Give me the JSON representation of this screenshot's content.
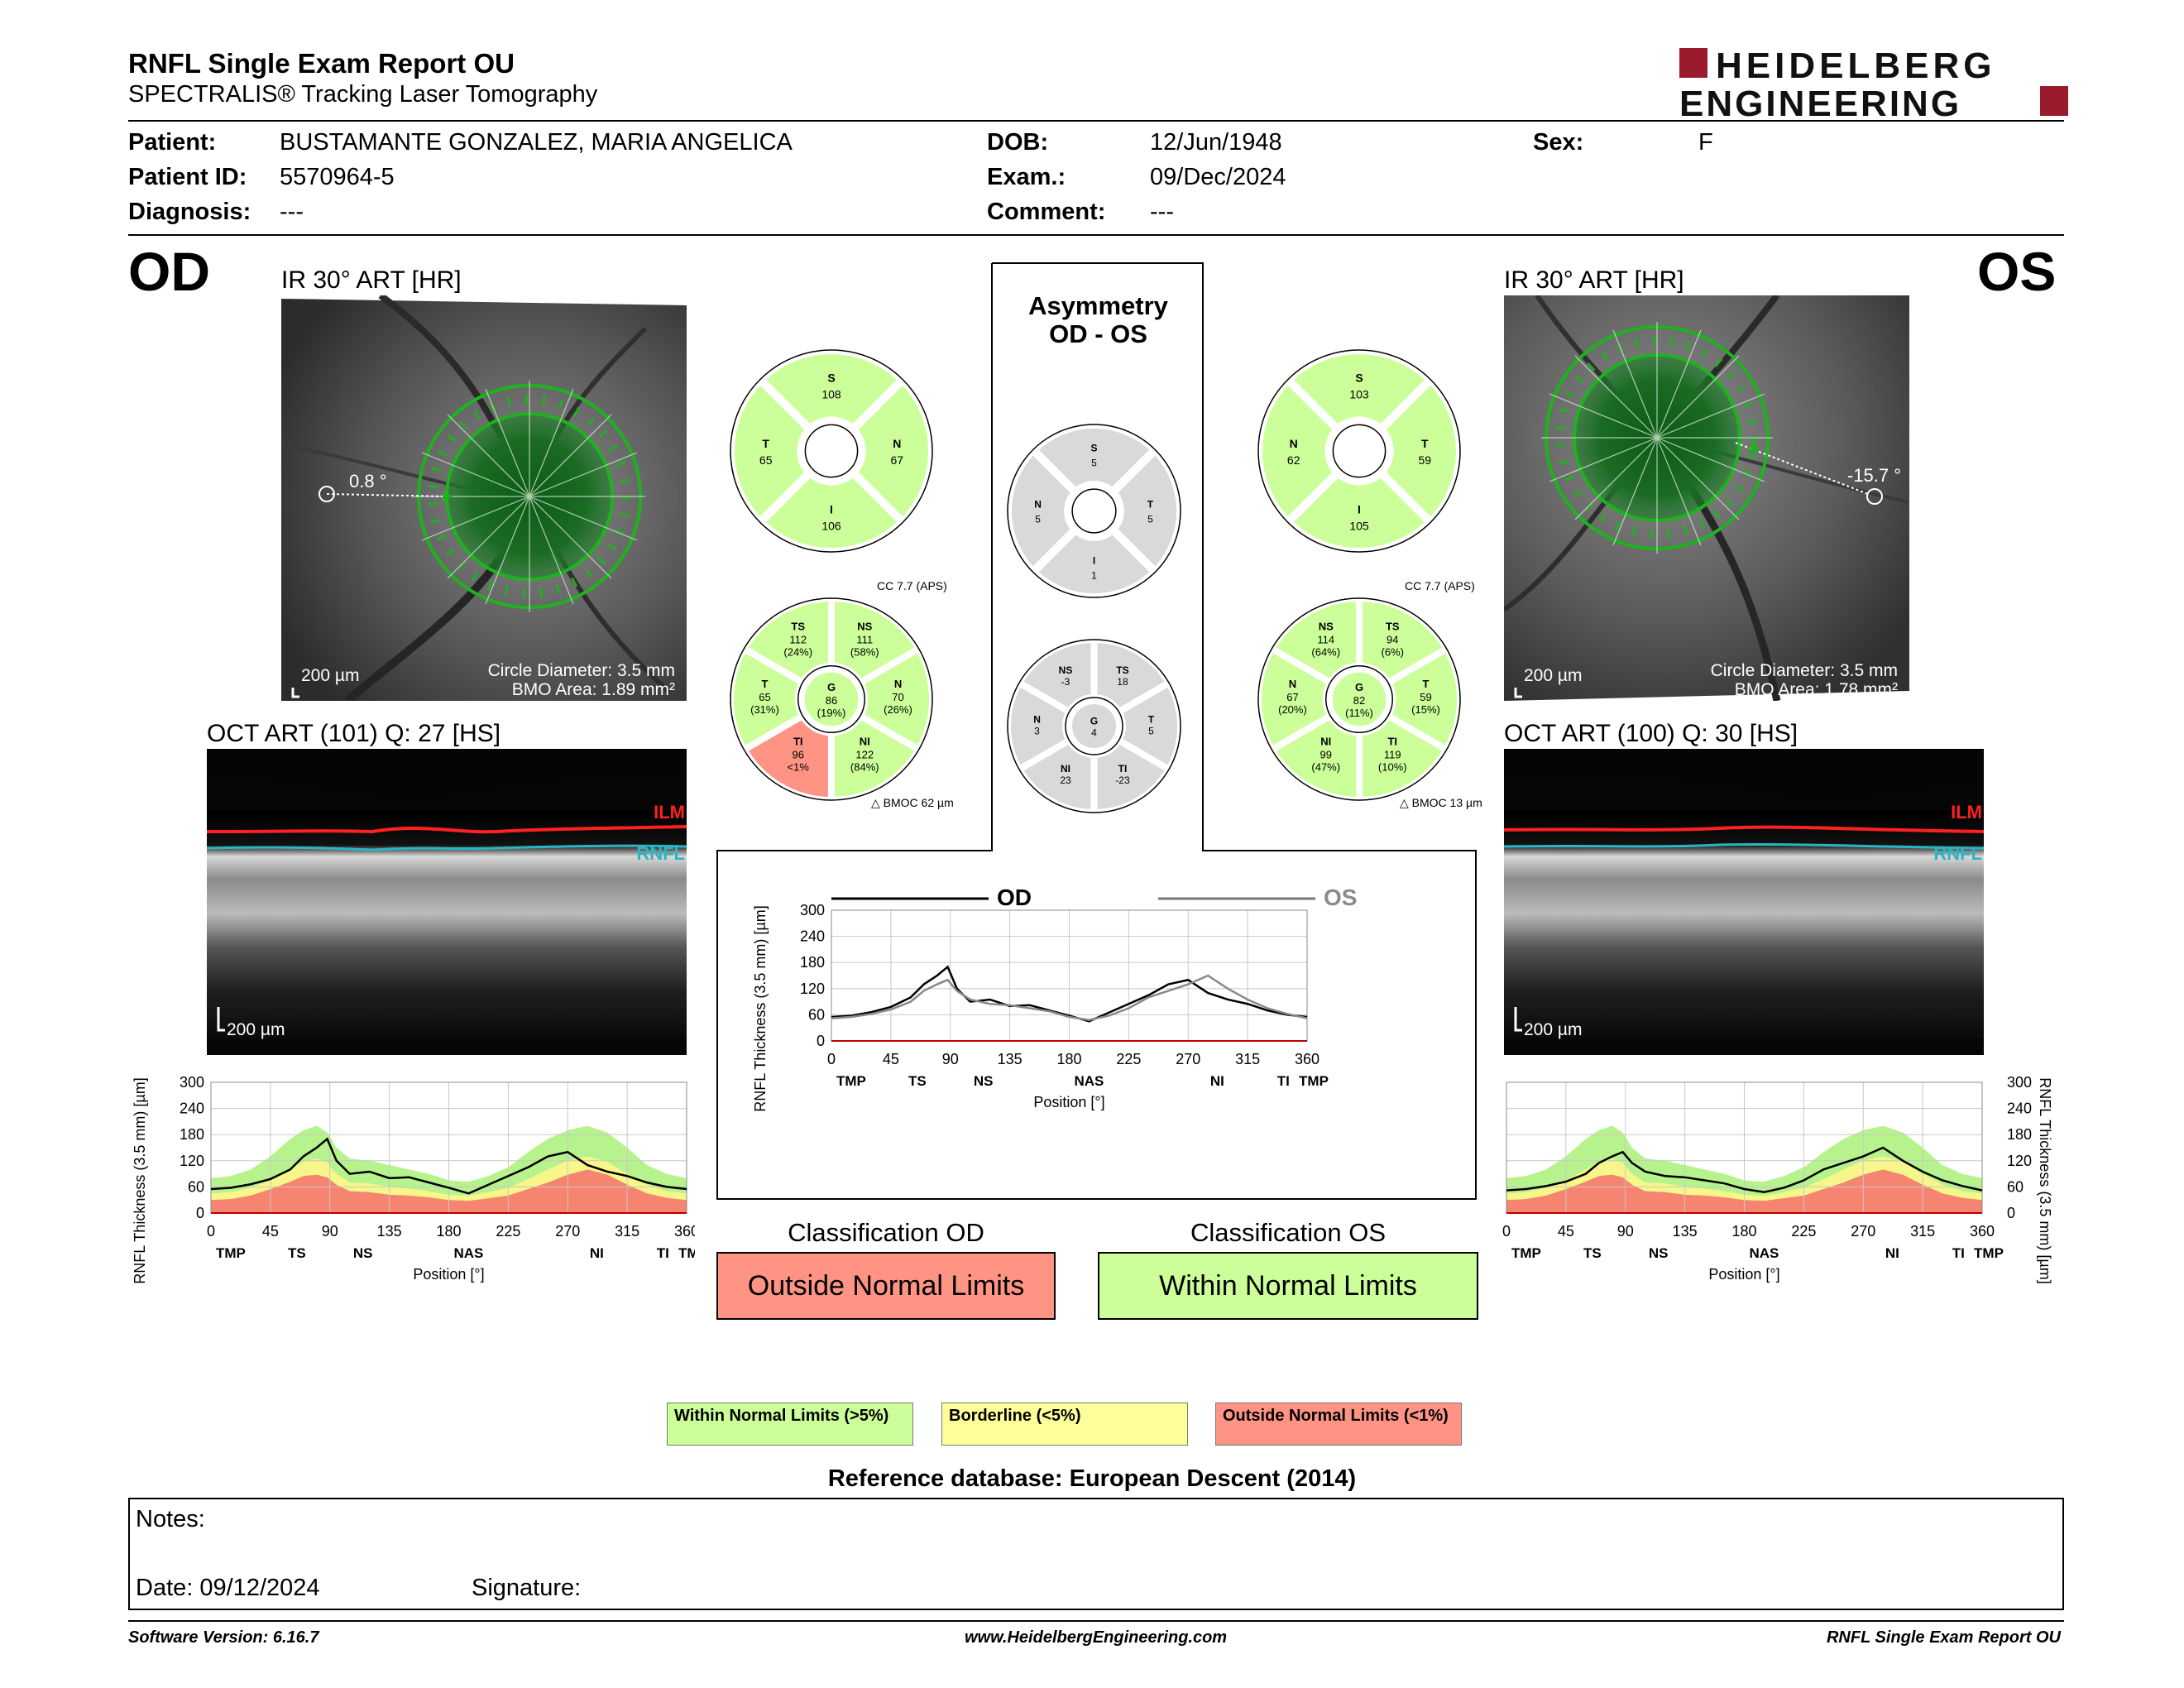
{
  "header": {
    "title": "RNFL Single Exam Report OU",
    "subtitle": "SPECTRALIS® Tracking Laser Tomography",
    "logo_line1": "HEIDELBERG",
    "logo_line2": "ENGINEERING"
  },
  "patient": {
    "patient_label": "Patient:",
    "patient_value": "BUSTAMANTE GONZALEZ, MARIA ANGELICA",
    "id_label": "Patient ID:",
    "id_value": "5570964-5",
    "diag_label": "Diagnosis:",
    "diag_value": "---",
    "dob_label": "DOB:",
    "dob_value": "12/Jun/1948",
    "exam_label": "Exam.:",
    "exam_value": "09/Dec/2024",
    "comment_label": "Comment:",
    "comment_value": "---",
    "sex_label": "Sex:",
    "sex_value": "F"
  },
  "od": {
    "eye": "OD",
    "ir_title": "IR 30° ART [HR]",
    "angle": "0.8 °",
    "scale": "200 µm",
    "circle_diameter": "Circle Diameter: 3.5 mm",
    "bmo_area": "BMO Area: 1.89 mm²",
    "oct_title": "OCT ART (101) Q: 27 [HS]",
    "oct_scale": "200 µm",
    "ilm": "ILM",
    "rnfl": "RNFL",
    "quad": {
      "S": "108",
      "N": "67",
      "I": "106",
      "T": "65"
    },
    "cc": "CC 7.7 (APS)",
    "bmoc": "BMOC 62 µm",
    "sectors": {
      "TS": [
        "112",
        "(24%)"
      ],
      "NS": [
        "111",
        "(58%)"
      ],
      "N": [
        "70",
        "(26%)"
      ],
      "NI": [
        "122",
        "(84%)"
      ],
      "TI": [
        "96",
        "<1%"
      ],
      "T": [
        "65",
        "(31%)"
      ],
      "G": [
        "86",
        "(19%)"
      ]
    },
    "classification_label": "Classification OD",
    "classification_value": "Outside Normal Limits"
  },
  "os": {
    "eye": "OS",
    "ir_title": "IR 30° ART [HR]",
    "angle": "-15.7 °",
    "scale": "200 µm",
    "circle_diameter": "Circle Diameter: 3.5 mm",
    "bmo_area": "BMO Area: 1.78 mm²",
    "oct_title": "OCT ART (100) Q: 30 [HS]",
    "oct_scale": "200 µm",
    "ilm": "ILM",
    "rnfl": "RNFL",
    "quad": {
      "S": "103",
      "N": "62",
      "I": "105",
      "T": "59"
    },
    "cc": "CC 7.7 (APS)",
    "bmoc": "BMOC 13 µm",
    "sectors": {
      "NS": [
        "114",
        "(64%)"
      ],
      "TS": [
        "94",
        "(6%)"
      ],
      "T": [
        "59",
        "(15%)"
      ],
      "TI": [
        "119",
        "(10%)"
      ],
      "NI": [
        "99",
        "(47%)"
      ],
      "N": [
        "67",
        "(20%)"
      ],
      "G": [
        "82",
        "(11%)"
      ]
    },
    "classification_label": "Classification OS",
    "classification_value": "Within Normal Limits"
  },
  "asym": {
    "title1": "Asymmetry",
    "title2": "OD - OS",
    "quad": {
      "S": "5",
      "N": "5",
      "I": "1",
      "T": "5"
    },
    "sectors": {
      "NS": "-3",
      "TS": "18",
      "T": "5",
      "TI": "-23",
      "NI": "23",
      "N": "3",
      "G": "4"
    }
  },
  "chart_data": [
    {
      "type": "line",
      "title": "OD",
      "xlabel": "Position [°]",
      "ylabel": "RNFL Thickness (3.5 mm) [µm]",
      "xlim": [
        0,
        360
      ],
      "ylim": [
        0,
        300
      ],
      "xticks": [
        "0",
        "45",
        "90",
        "135",
        "180",
        "225",
        "270",
        "315",
        "360"
      ],
      "yticks": [
        "0",
        "60",
        "120",
        "180",
        "240",
        "300"
      ],
      "region_labels": [
        "TMP",
        "TS",
        "NS",
        "NAS",
        "NI",
        "TI",
        "TMP"
      ],
      "x": [
        0,
        15,
        30,
        45,
        60,
        70,
        80,
        88,
        95,
        105,
        120,
        135,
        150,
        165,
        180,
        195,
        210,
        225,
        240,
        255,
        270,
        285,
        300,
        315,
        330,
        345,
        360
      ],
      "series": [
        {
          "name": "OD",
          "values": [
            55,
            58,
            66,
            78,
            100,
            130,
            150,
            170,
            120,
            90,
            95,
            80,
            82,
            70,
            58,
            45,
            65,
            85,
            105,
            130,
            140,
            110,
            95,
            85,
            70,
            60,
            55
          ]
        }
      ],
      "bands": {
        "outside_upper": [
          30,
          32,
          40,
          55,
          72,
          85,
          88,
          82,
          65,
          50,
          48,
          42,
          40,
          36,
          30,
          28,
          34,
          40,
          55,
          70,
          88,
          100,
          88,
          65,
          45,
          35,
          30
        ],
        "borderline_upper": [
          45,
          48,
          58,
          75,
          100,
          118,
          125,
          115,
          90,
          70,
          68,
          60,
          56,
          50,
          42,
          40,
          48,
          58,
          78,
          100,
          120,
          130,
          118,
          90,
          65,
          50,
          45
        ],
        "normal_upper": [
          80,
          85,
          100,
          130,
          170,
          190,
          200,
          185,
          150,
          125,
          120,
          110,
          100,
          90,
          75,
          72,
          85,
          105,
          140,
          170,
          190,
          200,
          185,
          150,
          110,
          90,
          80
        ]
      }
    },
    {
      "type": "line",
      "title": "Asymmetry OD - OS",
      "legend": [
        "OD",
        "OS"
      ],
      "xlabel": "Position [°]",
      "ylabel": "RNFL Thickness (3.5 mm) [µm]",
      "xlim": [
        0,
        360
      ],
      "ylim": [
        0,
        300
      ],
      "xticks": [
        "0",
        "45",
        "90",
        "135",
        "180",
        "225",
        "270",
        "315",
        "360"
      ],
      "yticks": [
        "0",
        "60",
        "120",
        "180",
        "240",
        "300"
      ],
      "region_labels": [
        "TMP",
        "TS",
        "NS",
        "NAS",
        "NI",
        "TI",
        "TMP"
      ],
      "x": [
        0,
        15,
        30,
        45,
        60,
        70,
        80,
        88,
        95,
        105,
        120,
        135,
        150,
        165,
        180,
        195,
        210,
        225,
        240,
        255,
        270,
        285,
        300,
        315,
        330,
        345,
        360
      ],
      "series": [
        {
          "name": "OD",
          "values": [
            55,
            58,
            66,
            78,
            100,
            130,
            150,
            170,
            120,
            90,
            95,
            80,
            82,
            70,
            58,
            45,
            65,
            85,
            105,
            130,
            140,
            110,
            95,
            85,
            70,
            60,
            55
          ]
        },
        {
          "name": "OS",
          "values": [
            52,
            55,
            62,
            72,
            90,
            115,
            130,
            140,
            115,
            95,
            85,
            82,
            75,
            68,
            55,
            48,
            58,
            75,
            100,
            115,
            130,
            150,
            120,
            95,
            75,
            62,
            52
          ]
        }
      ]
    },
    {
      "type": "line",
      "title": "OS",
      "xlabel": "Position [°]",
      "ylabel": "RNFL Thickness (3.5 mm) [µm]",
      "xlim": [
        0,
        360
      ],
      "ylim": [
        0,
        300
      ],
      "xticks": [
        "0",
        "45",
        "90",
        "135",
        "180",
        "225",
        "270",
        "315",
        "360"
      ],
      "yticks": [
        "0",
        "60",
        "120",
        "180",
        "240",
        "300"
      ],
      "region_labels": [
        "TMP",
        "TS",
        "NS",
        "NAS",
        "NI",
        "TI",
        "TMP"
      ],
      "x": [
        0,
        15,
        30,
        45,
        60,
        70,
        80,
        88,
        95,
        105,
        120,
        135,
        150,
        165,
        180,
        195,
        210,
        225,
        240,
        255,
        270,
        285,
        300,
        315,
        330,
        345,
        360
      ],
      "series": [
        {
          "name": "OS",
          "values": [
            52,
            55,
            62,
            72,
            90,
            115,
            130,
            140,
            115,
            95,
            85,
            82,
            75,
            68,
            55,
            48,
            58,
            75,
            100,
            115,
            130,
            150,
            120,
            95,
            75,
            62,
            52
          ]
        }
      ],
      "bands": {
        "outside_upper": [
          30,
          32,
          40,
          55,
          72,
          85,
          88,
          82,
          65,
          50,
          48,
          42,
          40,
          36,
          30,
          28,
          34,
          40,
          55,
          70,
          88,
          100,
          88,
          65,
          45,
          35,
          30
        ],
        "borderline_upper": [
          45,
          48,
          58,
          75,
          100,
          118,
          125,
          115,
          90,
          70,
          68,
          60,
          56,
          50,
          42,
          40,
          48,
          58,
          78,
          100,
          120,
          130,
          118,
          90,
          65,
          50,
          45
        ],
        "normal_upper": [
          80,
          85,
          100,
          130,
          170,
          190,
          200,
          185,
          150,
          125,
          120,
          110,
          100,
          90,
          75,
          72,
          85,
          105,
          140,
          170,
          190,
          200,
          185,
          150,
          110,
          90,
          80
        ]
      }
    }
  ],
  "legend": {
    "wnl": "Within Normal Limits (>5%)",
    "bl": "Borderline (<5%)",
    "onl": "Outside Normal Limits (<1%)"
  },
  "reference": "Reference database: European Descent (2014)",
  "notes": {
    "notes_label": "Notes:",
    "date_label": "Date: 09/12/2024",
    "signature_label": "Signature:"
  },
  "footer": {
    "software": "Software Version: 6.16.7",
    "website": "www.HeidelbergEngineering.com",
    "report": "RNFL Single Exam Report OU"
  },
  "colors": {
    "normal": "#ccff99",
    "borderline": "#ffff99",
    "outside": "#ff9485",
    "normal_band": "#b7f38c",
    "borderline_band": "#f6f68a",
    "outside_band": "#f58470",
    "asym_gray": "#d9d9d9",
    "logo_red": "#9b1b2e",
    "circle_green": "#1db31d"
  }
}
